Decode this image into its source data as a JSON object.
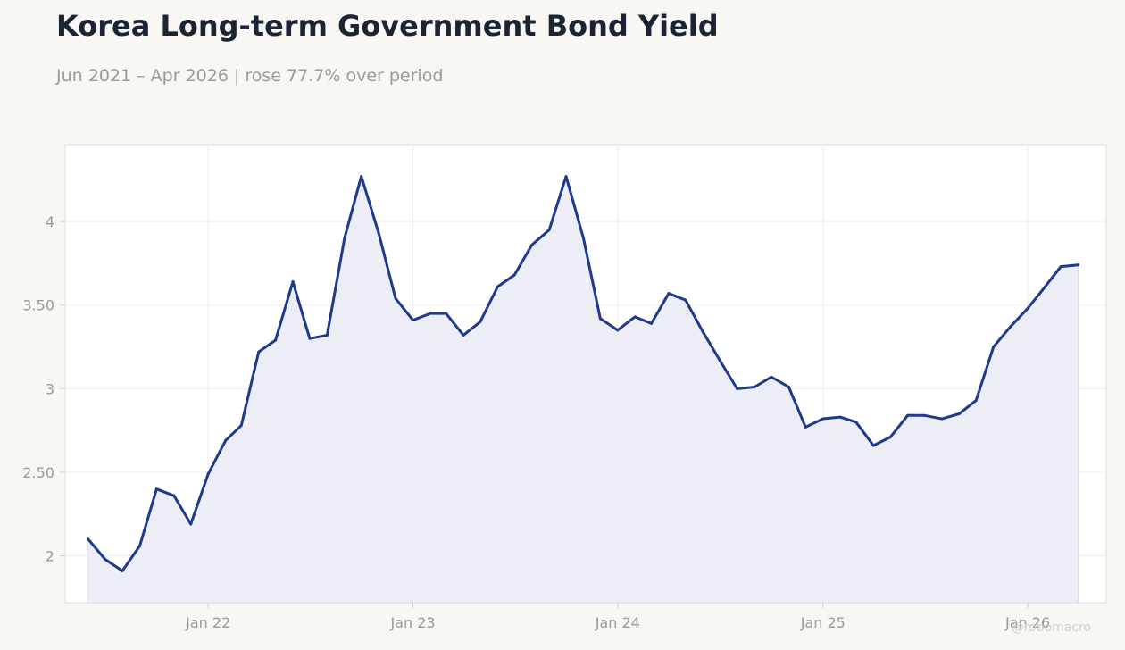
{
  "header": {
    "title": "Korea Long-term Government Bond Yield",
    "subtitle": "Jun 2021 – Apr 2026 | rose 77.7% over period"
  },
  "watermark": "@robomacro",
  "colors": {
    "background": "#f8f7f4",
    "plot_background": "#ffffff",
    "line": "#1f3a8a",
    "area_fill": "#edeef5",
    "grid": "#ededed",
    "axis_text": "#9a9a96",
    "title_text": "#1c2333"
  },
  "chart_data": {
    "type": "area",
    "title": "Korea Long-term Government Bond Yield",
    "subtitle": "Jun 2021 – Apr 2026 | rose 77.7% over period",
    "xlabel": "",
    "ylabel": "",
    "ylim": [
      1.72,
      4.46
    ],
    "yticks": [
      2,
      2.5,
      3,
      3.5,
      4
    ],
    "ytick_labels": [
      "2",
      "2.50",
      "3",
      "3.50",
      "4"
    ],
    "xlim": [
      "2021-04-21",
      "2026-05-21"
    ],
    "xticks": [
      "2022-01-01",
      "2023-01-01",
      "2024-01-01",
      "2025-01-01",
      "2026-01-01"
    ],
    "xtick_labels": [
      "Jan 22",
      "Jan 23",
      "Jan 24",
      "Jan 25",
      "Jan 26"
    ],
    "grid": true,
    "legend": "none",
    "series": [
      {
        "x": [
          "2021-06",
          "2021-07",
          "2021-08",
          "2021-09",
          "2021-10",
          "2021-11",
          "2021-12",
          "2022-01",
          "2022-02",
          "2022-03",
          "2022-04",
          "2022-05",
          "2022-06",
          "2022-07",
          "2022-08",
          "2022-09",
          "2022-10",
          "2022-11",
          "2022-12",
          "2023-01",
          "2023-02",
          "2023-03",
          "2023-04",
          "2023-05",
          "2023-06",
          "2023-07",
          "2023-08",
          "2023-09",
          "2023-10",
          "2023-11",
          "2023-12",
          "2024-01",
          "2024-02",
          "2024-03",
          "2024-04",
          "2024-05",
          "2024-06",
          "2024-07",
          "2024-08",
          "2024-09",
          "2024-10",
          "2024-11",
          "2024-12",
          "2025-01",
          "2025-02",
          "2025-03",
          "2025-04",
          "2025-05",
          "2025-06",
          "2025-07",
          "2025-08",
          "2025-09",
          "2025-10",
          "2025-11",
          "2025-12",
          "2026-01",
          "2026-02",
          "2026-03",
          "2026-04"
        ],
        "values": [
          2.1,
          1.98,
          1.91,
          2.06,
          2.4,
          2.36,
          2.19,
          2.49,
          2.69,
          2.78,
          3.22,
          3.29,
          3.64,
          3.3,
          3.32,
          3.9,
          4.27,
          3.93,
          3.54,
          3.41,
          3.45,
          3.45,
          3.32,
          3.4,
          3.61,
          3.68,
          3.86,
          3.95,
          4.27,
          3.9,
          3.42,
          3.35,
          3.43,
          3.39,
          3.57,
          3.53,
          3.34,
          3.17,
          3.0,
          3.01,
          3.07,
          3.01,
          2.77,
          2.82,
          2.83,
          2.8,
          2.66,
          2.71,
          2.84,
          2.84,
          2.82,
          2.85,
          2.93,
          3.25,
          3.37,
          3.48,
          3.61,
          3.73,
          3.74
        ]
      }
    ]
  }
}
